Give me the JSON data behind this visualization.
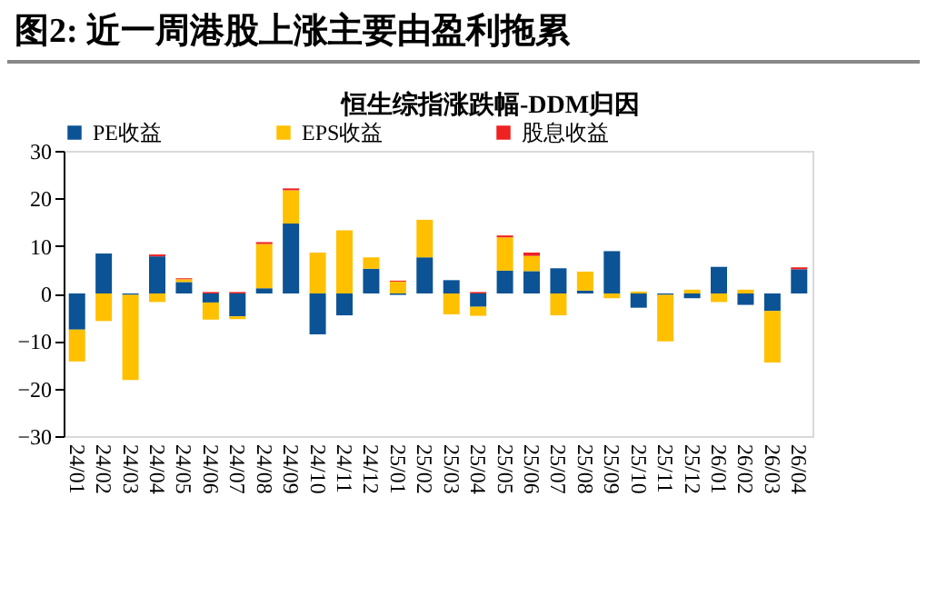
{
  "chart_data": {
    "type": "bar",
    "title": "图2:  近一周港股上涨主要由盈利拖累",
    "subtitle": "恒生综指涨跌幅-DDM归因",
    "stacked": true,
    "legend": "top",
    "categories": [
      "24/01",
      "24/02",
      "24/03",
      "24/04",
      "24/05",
      "24/06",
      "24/07",
      "24/08",
      "24/09",
      "24/10",
      "24/11",
      "24/12",
      "25/01",
      "25/02",
      "25/03",
      "25/04",
      "25/05",
      "25/06",
      "25/07",
      "25/08",
      "25/09",
      "25/10",
      "25/11",
      "25/12",
      "26/01",
      "26/02",
      "26/03",
      "26/04"
    ],
    "series": [
      {
        "name": "PE收益",
        "color": "#0b5394",
        "values": [
          -7.6,
          8.4,
          -0.3,
          7.8,
          2.4,
          -1.9,
          -4.8,
          1.1,
          14.7,
          -8.6,
          -4.6,
          5.2,
          -0.3,
          7.6,
          2.8,
          -2.8,
          4.8,
          4.7,
          5.3,
          0.6,
          8.9,
          -3.0,
          -0.3,
          -1.0,
          5.6,
          -2.4,
          -3.7,
          5.1
        ]
      },
      {
        "name": "EPS收益",
        "color": "#ffc000",
        "values": [
          -6.7,
          -5.8,
          -17.9,
          -1.8,
          0.6,
          -3.6,
          -0.6,
          9.3,
          7.0,
          8.6,
          13.3,
          2.4,
          2.5,
          7.9,
          -4.4,
          -1.9,
          7.0,
          3.2,
          -4.6,
          4.0,
          -1.0,
          0.4,
          -9.8,
          0.8,
          -1.8,
          0.8,
          -10.8,
          null
        ]
      },
      {
        "name": "股息收益",
        "color": "#ee2222",
        "values": [
          null,
          null,
          null,
          0.4,
          0.2,
          0.3,
          0.3,
          0.4,
          0.4,
          null,
          null,
          null,
          0.2,
          null,
          null,
          0.3,
          0.4,
          0.7,
          null,
          null,
          null,
          null,
          null,
          null,
          null,
          null,
          null,
          0.4
        ]
      }
    ],
    "ylim": [
      -30,
      30
    ],
    "yticks": [
      -30,
      -20,
      -10,
      0,
      10,
      20,
      30
    ]
  }
}
